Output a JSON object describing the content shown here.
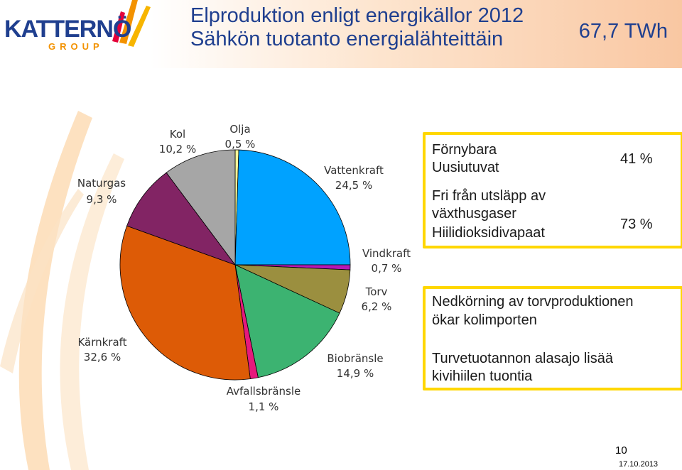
{
  "header": {
    "logo_word": "KATTERNÖ",
    "logo_sub": "GROUP",
    "title_line1": "Elproduktion enligt energikällor 2012",
    "title_line2": "Sähkön tuotanto energialähteittäin",
    "total": "67,7 TWh"
  },
  "chart_data": {
    "type": "pie",
    "slices": [
      {
        "name": "Olja",
        "value_label": "0,5 %",
        "value": 0.5,
        "color": "#ffff99"
      },
      {
        "name": "Vattenkraft",
        "value_label": "24,5 %",
        "value": 24.5,
        "color": "#00a2ff"
      },
      {
        "name": "Vindkraft",
        "value_label": "0,7 %",
        "value": 0.7,
        "color": "#b41ab4"
      },
      {
        "name": "Torv",
        "value_label": "6,2 %",
        "value": 6.2,
        "color": "#9b8f3f"
      },
      {
        "name": "Biobränsle",
        "value_label": "14,9 %",
        "value": 14.9,
        "color": "#3cb371"
      },
      {
        "name": "Avfallsbränsle",
        "value_label": "1,1 %",
        "value": 1.1,
        "color": "#e6197c"
      },
      {
        "name": "Kärnkraft",
        "value_label": "32,6 %",
        "value": 32.6,
        "color": "#dd5b06"
      },
      {
        "name": "Naturgas",
        "value_label": "9,3 %",
        "value": 9.3,
        "color": "#822464"
      },
      {
        "name": "Kol",
        "value_label": "10,2 %",
        "value": 10.2,
        "color": "#a6a6a6"
      }
    ]
  },
  "box1": {
    "line1": "Förnybara",
    "line2": "Uusiutuvat",
    "pct1": "41 %",
    "line3": "Fri från utsläpp av",
    "line4": "växthusgaser",
    "line5": "Hiilidioksidivapaat",
    "pct2": "73 %"
  },
  "box2": {
    "line1": "Nedkörning av torvproduktionen",
    "line2": "ökar kolimporten",
    "line3": "Turvetuotannon alasajo lisää",
    "line4": "kivihiilen tuontia"
  },
  "footer": {
    "page": "10",
    "date": "17.10.2013"
  }
}
